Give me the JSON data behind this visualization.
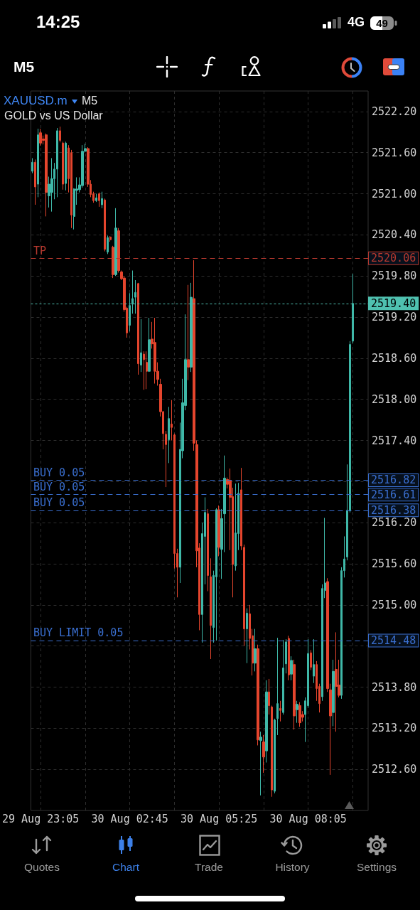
{
  "chart_data": {
    "type": "candlestick",
    "title": "XAUUSD.m",
    "subtitle": "GOLD vs US Dollar",
    "annotations": [
      "14:25",
      "4G",
      "49",
      "M5",
      "M5",
      "Quotes",
      "Chart",
      "Trade",
      "History",
      "Settings",
      "2520.06",
      "2519.40",
      "2516.82",
      "2516.61",
      "2516.38",
      "2514.48"
    ],
    "categories": [
      null,
      null,
      null,
      "29 Aug 23:05",
      null,
      null,
      null,
      null,
      null,
      null,
      null,
      null,
      null,
      null,
      null,
      null,
      null,
      null,
      null,
      null,
      null,
      null,
      null,
      null,
      null,
      null,
      null,
      null,
      null,
      null,
      null,
      null,
      null,
      null,
      null,
      "30 Aug 02:45",
      null,
      null,
      null,
      null,
      null,
      null,
      null,
      null,
      null,
      null,
      null,
      null,
      null,
      null,
      null,
      null,
      null,
      null,
      null,
      null,
      null,
      null,
      null,
      null,
      null,
      null,
      null,
      null,
      null,
      null,
      null,
      "30 Aug 05:25",
      null,
      null,
      null,
      null,
      null,
      null,
      null,
      null,
      null,
      null,
      null,
      null,
      null,
      null,
      null,
      null,
      null,
      null,
      null,
      null,
      null,
      null,
      null,
      null,
      null,
      null,
      null,
      null,
      null,
      null,
      null,
      "30 Aug 08:05",
      null,
      null,
      null,
      null,
      null,
      null,
      null,
      null,
      null,
      null,
      null,
      null,
      null,
      null,
      null,
      null,
      null,
      null,
      null,
      null,
      null
    ],
    "ohlc": [
      [
        2521.33,
        2521.52,
        2521.3,
        2521.46
      ],
      [
        2521.46,
        2521.5,
        2520.84,
        2521.1
      ],
      [
        2521.14,
        2521.95,
        2520.95,
        2521.86
      ],
      [
        2521.89,
        2521.95,
        2521.7,
        2521.74
      ],
      [
        2521.8,
        2521.85,
        2521.72,
        2521.78
      ],
      [
        2521.86,
        2521.88,
        2520.67,
        2521.02
      ],
      [
        2520.97,
        2521.25,
        2520.8,
        2521.14
      ],
      [
        2521.02,
        2521.52,
        2520.74,
        2521.22
      ],
      [
        2521.22,
        2521.45,
        2520.92,
        2521.36
      ],
      [
        2521.36,
        2521.96,
        2520.95,
        2521.92
      ],
      [
        2521.92,
        2521.98,
        2521.75,
        2521.78
      ],
      [
        2521.74,
        2521.76,
        2521.06,
        2521.14
      ],
      [
        2521.15,
        2521.76,
        2521.05,
        2521.74
      ],
      [
        2521.67,
        2521.71,
        2521.02,
        2521.22
      ],
      [
        2521.6,
        2521.64,
        2520.5,
        2520.69
      ],
      [
        2520.67,
        2521.08,
        2520.48,
        2521.07
      ],
      [
        2521.05,
        2521.24,
        2520.84,
        2521.07
      ],
      [
        2521.06,
        2521.24,
        2521.02,
        2521.13
      ],
      [
        2521.12,
        2521.71,
        2521.09,
        2521.62
      ],
      [
        2521.62,
        2521.73,
        2521.61,
        2521.66
      ],
      [
        2521.66,
        2521.68,
        2521.1,
        2521.14
      ],
      [
        2521.14,
        2521.2,
        2520.95,
        2520.99
      ],
      [
        2521.0,
        2521.03,
        2520.87,
        2520.9
      ],
      [
        2520.9,
        2521.0,
        2520.88,
        2520.94
      ],
      [
        2521.0,
        2521.02,
        2520.81,
        2520.9
      ],
      [
        2520.84,
        2521.03,
        2520.79,
        2520.93
      ],
      [
        2520.91,
        2520.93,
        2520.16,
        2520.19
      ],
      [
        2520.15,
        2520.39,
        2520.12,
        2520.36
      ],
      [
        2520.37,
        2520.38,
        2520.3,
        2520.33
      ],
      [
        2520.22,
        2520.24,
        2519.77,
        2519.82
      ],
      [
        2519.82,
        2520.79,
        2519.8,
        2520.5
      ],
      [
        2520.46,
        2520.5,
        2519.85,
        2519.88
      ],
      [
        2519.86,
        2519.88,
        2519.74,
        2519.76
      ],
      [
        2519.77,
        2519.8,
        2519.28,
        2519.31
      ],
      [
        2519.33,
        2519.35,
        2518.9,
        2518.97
      ],
      [
        2519.08,
        2519.55,
        2518.99,
        2519.37
      ],
      [
        2519.39,
        2519.88,
        2519.25,
        2519.47
      ],
      [
        2519.49,
        2519.74,
        2519.25,
        2519.56
      ],
      [
        2519.69,
        2519.7,
        2518.36,
        2518.52
      ],
      [
        2518.5,
        2519.17,
        2518.4,
        2518.68
      ],
      [
        2518.66,
        2518.7,
        2518.14,
        2518.58
      ],
      [
        2518.54,
        2518.7,
        2518.15,
        2518.41
      ],
      [
        2518.41,
        2519.19,
        2518.4,
        2518.87
      ],
      [
        2518.88,
        2519.13,
        2518.74,
        2518.81
      ],
      [
        2518.83,
        2519.19,
        2518.23,
        2518.41
      ],
      [
        2518.41,
        2518.54,
        2518.2,
        2518.29
      ],
      [
        2518.22,
        2518.3,
        2517.75,
        2517.82
      ],
      [
        2517.82,
        2517.83,
        2517.27,
        2517.5
      ],
      [
        2517.49,
        2517.54,
        2516.72,
        2517.34
      ],
      [
        2517.41,
        2517.89,
        2517.07,
        2517.72
      ],
      [
        2517.64,
        2517.99,
        2517.4,
        2517.59
      ],
      [
        2517.48,
        2517.5,
        2515.53,
        2515.75
      ],
      [
        2515.75,
        2515.82,
        2515.11,
        2515.55
      ],
      [
        2515.55,
        2517.66,
        2515.32,
        2517.27
      ],
      [
        2517.25,
        2518.3,
        2517.14,
        2517.95
      ],
      [
        2517.91,
        2519.24,
        2517.84,
        2518.58
      ],
      [
        2518.58,
        2519.67,
        2518.28,
        2518.47
      ],
      [
        2518.47,
        2519.7,
        2518.4,
        2519.49
      ],
      [
        2519.47,
        2520.03,
        2517.25,
        2517.36
      ],
      [
        2517.34,
        2517.4,
        2515.55,
        2515.79
      ],
      [
        2515.83,
        2515.9,
        2514.63,
        2514.86
      ],
      [
        2514.86,
        2516.2,
        2514.45,
        2516.04
      ],
      [
        2516.0,
        2516.57,
        2515.3,
        2516.35
      ],
      [
        2516.33,
        2516.4,
        2515.2,
        2515.43
      ],
      [
        2515.41,
        2515.68,
        2514.21,
        2514.7
      ],
      [
        2514.67,
        2515.5,
        2514.45,
        2515.43
      ],
      [
        2515.41,
        2516.41,
        2514.48,
        2516.39
      ],
      [
        2516.39,
        2516.45,
        2515.71,
        2515.84
      ],
      [
        2515.81,
        2516.4,
        2515.38,
        2516.26
      ],
      [
        2516.33,
        2517.18,
        2515.77,
        2516.85
      ],
      [
        2516.83,
        2516.86,
        2516.7,
        2516.76
      ],
      [
        2516.81,
        2516.99,
        2515.8,
        2516.57
      ],
      [
        2516.58,
        2516.71,
        2515.11,
        2515.59
      ],
      [
        2515.57,
        2516.77,
        2515.5,
        2516.05
      ],
      [
        2516.04,
        2516.78,
        2515.8,
        2516.63
      ],
      [
        2516.68,
        2517.0,
        2515.8,
        2515.86
      ],
      [
        2515.84,
        2515.88,
        2514.4,
        2514.65
      ],
      [
        2514.65,
        2514.95,
        2514.15,
        2514.88
      ],
      [
        2514.87,
        2515.0,
        2514.35,
        2514.51
      ],
      [
        2514.55,
        2514.65,
        2513.97,
        2514.15
      ],
      [
        2514.15,
        2514.65,
        2514.03,
        2514.36
      ],
      [
        2514.36,
        2514.42,
        2512.95,
        2513.03
      ],
      [
        2513.02,
        2513.15,
        2512.22,
        2513.07
      ],
      [
        2513.0,
        2513.1,
        2512.55,
        2512.78
      ],
      [
        2512.87,
        2513.9,
        2512.7,
        2513.73
      ],
      [
        2513.73,
        2513.92,
        2513.4,
        2513.53
      ],
      [
        2513.51,
        2513.53,
        2512.2,
        2512.3
      ],
      [
        2512.28,
        2513.34,
        2512.25,
        2513.32
      ],
      [
        2513.34,
        2514.52,
        2513.1,
        2513.56
      ],
      [
        2513.49,
        2513.6,
        2513.3,
        2513.46
      ],
      [
        2513.43,
        2514.49,
        2513.4,
        2514.08
      ],
      [
        2514.14,
        2514.5,
        2514.0,
        2514.46
      ],
      [
        2514.51,
        2514.55,
        2513.9,
        2513.98
      ],
      [
        2513.99,
        2514.25,
        2513.9,
        2514.19
      ],
      [
        2514.13,
        2514.2,
        2513.18,
        2513.38
      ],
      [
        2513.47,
        2513.6,
        2513.28,
        2513.55
      ],
      [
        2513.53,
        2513.58,
        2513.22,
        2513.28
      ],
      [
        2513.4,
        2513.45,
        2513.3,
        2513.36
      ],
      [
        2513.4,
        2513.65,
        2513.0,
        2513.6
      ],
      [
        2513.53,
        2514.5,
        2513.5,
        2514.29
      ],
      [
        2514.3,
        2514.34,
        2514.05,
        2514.09
      ],
      [
        2513.96,
        2514.5,
        2513.86,
        2514.13
      ],
      [
        2514.13,
        2514.18,
        2513.6,
        2513.78
      ],
      [
        2513.81,
        2513.85,
        2513.43,
        2513.56
      ],
      [
        2513.66,
        2515.3,
        2513.6,
        2515.24
      ],
      [
        2515.21,
        2516.27,
        2515.1,
        2515.32
      ],
      [
        2515.34,
        2515.39,
        2513.73,
        2513.78
      ],
      [
        2513.76,
        2513.85,
        2512.52,
        2513.38
      ],
      [
        2513.43,
        2514.2,
        2513.23,
        2514.03
      ],
      [
        2514.06,
        2514.6,
        2513.15,
        2513.81
      ],
      [
        2513.83,
        2514.2,
        2513.65,
        2513.68
      ],
      [
        2513.68,
        2515.55,
        2513.63,
        2515.5
      ],
      [
        2515.5,
        2516.0,
        2515.4,
        2515.67
      ],
      [
        2515.7,
        2517.05,
        2515.65,
        2516.38
      ],
      [
        2516.38,
        2518.85,
        2516.35,
        2518.8
      ],
      [
        2518.85,
        2519.83,
        2518.82,
        2519.4
      ],
      null,
      null,
      null,
      null,
      null
    ],
    "colors": [
      "#3fb8a8",
      "#e5452d",
      "#3fb8a8",
      "#e5452d",
      "#e5452d",
      "#e5452d",
      "#3fb8a8",
      "#3fb8a8",
      "#3fb8a8",
      "#3fb8a8",
      "#e5452d",
      "#e5452d",
      "#3fb8a8",
      "#e5452d",
      "#e5452d",
      "#3fb8a8",
      "#3fb8a8",
      "#3fb8a8",
      "#3fb8a8",
      "#3fb8a8",
      "#e5452d",
      "#e5452d",
      "#e5452d",
      "#3fb8a8",
      "#e5452d",
      "#3fb8a8",
      "#e5452d",
      "#3fb8a8",
      "#e5452d",
      "#e5452d",
      "#3fb8a8",
      "#e5452d",
      "#e5452d",
      "#e5452d",
      "#e5452d",
      "#3fb8a8",
      "#3fb8a8",
      "#3fb8a8",
      "#e5452d",
      "#3fb8a8",
      "#e5452d",
      "#e5452d",
      "#3fb8a8",
      "#e5452d",
      "#e5452d",
      "#e5452d",
      "#e5452d",
      "#e5452d",
      "#e5452d",
      "#3fb8a8",
      "#e5452d",
      "#e5452d",
      "#e5452d",
      "#3fb8a8",
      "#3fb8a8",
      "#3fb8a8",
      "#e5452d",
      "#3fb8a8",
      "#e5452d",
      "#e5452d",
      "#e5452d",
      "#3fb8a8",
      "#3fb8a8",
      "#e5452d",
      "#e5452d",
      "#3fb8a8",
      "#3fb8a8",
      "#e5452d",
      "#3fb8a8",
      "#3fb8a8",
      "#e5452d",
      "#e5452d",
      "#e5452d",
      "#3fb8a8",
      "#3fb8a8",
      "#e5452d",
      "#e5452d",
      "#3fb8a8",
      "#e5452d",
      "#e5452d",
      "#3fb8a8",
      "#e5452d",
      "#3fb8a8",
      "#e5452d",
      "#3fb8a8",
      "#e5452d",
      "#e5452d",
      "#3fb8a8",
      "#3fb8a8",
      "#e5452d",
      "#3fb8a8",
      "#3fb8a8",
      "#e5452d",
      "#3fb8a8",
      "#e5452d",
      "#3fb8a8",
      "#e5452d",
      "#e5452d",
      "#3fb8a8",
      "#3fb8a8",
      "#e5452d",
      "#3fb8a8",
      "#e5452d",
      "#e5452d",
      "#3fb8a8",
      "#3fb8a8",
      "#e5452d",
      "#e5452d",
      "#3fb8a8",
      "#e5452d",
      "#e5452d",
      "#3fb8a8",
      "#3fb8a8",
      "#3fb8a8",
      "#3fb8a8",
      "#3fb8a8",
      null,
      null,
      null,
      null,
      null
    ],
    "ylim": [
      2512.0,
      2522.5
    ],
    "yticks": [
      {
        "value": 2512.6,
        "label": "2512.60"
      },
      {
        "value": 2513.2,
        "label": "2513.20"
      },
      {
        "value": 2513.8,
        "label": "2513.80"
      },
      {
        "value": 2514.4,
        "label": null
      },
      {
        "value": 2515.0,
        "label": "2515.00"
      },
      {
        "value": 2515.6,
        "label": "2515.60"
      },
      {
        "value": 2516.2,
        "label": "2516.20"
      },
      {
        "value": 2516.8,
        "label": null
      },
      {
        "value": 2517.4,
        "label": "2517.40"
      },
      {
        "value": 2518.0,
        "label": "2518.00"
      },
      {
        "value": 2518.6,
        "label": "2518.60"
      },
      {
        "value": 2519.2,
        "label": "2519.20"
      },
      {
        "value": 2519.8,
        "label": "2519.80"
      },
      {
        "value": 2520.4,
        "label": "2520.40"
      },
      {
        "value": 2521.0,
        "label": "2521.00"
      },
      {
        "value": 2521.6,
        "label": "2521.60"
      },
      {
        "value": 2522.2,
        "label": "2522.20"
      }
    ],
    "ref_lines": [
      {
        "axis": "y",
        "value": 2520.06,
        "label": "TP",
        "color": "#b8392f",
        "line_style": "dashed"
      },
      {
        "axis": "y",
        "value": 2519.4,
        "color": "#4fc1b0",
        "line_style": "dotted"
      },
      {
        "axis": "y",
        "value": 2516.82,
        "label": "BUY 0.05",
        "color": "#3a6fd0",
        "line_style": "dashed"
      },
      {
        "axis": "y",
        "value": 2516.61,
        "label": "BUY 0.05",
        "color": "#3a6fd0",
        "line_style": "dashed"
      },
      {
        "axis": "y",
        "value": 2516.38,
        "label": "BUY 0.05",
        "color": "#3a6fd0",
        "line_style": "dashed"
      },
      {
        "axis": "y",
        "value": 2514.48,
        "label": "BUY LIMIT 0.05",
        "color": "#3a6fd0",
        "line_style": "dashed"
      }
    ],
    "grid": true
  }
}
